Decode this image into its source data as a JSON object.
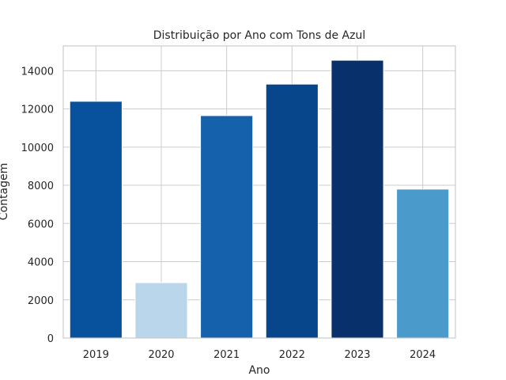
{
  "chart_data": {
    "type": "bar",
    "title": "Distribuição por Ano com Tons de Azul",
    "xlabel": "Ano",
    "ylabel": "Contagem",
    "categories": [
      "2019",
      "2020",
      "2021",
      "2022",
      "2023",
      "2024"
    ],
    "values": [
      12400,
      2900,
      11650,
      13300,
      14550,
      7800
    ],
    "colors": [
      "#08519c",
      "#b9d6ea",
      "#1561ab",
      "#08468b",
      "#08306b",
      "#4a9acc"
    ],
    "ylim": [
      0,
      15300
    ],
    "yticks": [
      0,
      2000,
      4000,
      6000,
      8000,
      10000,
      12000,
      14000
    ],
    "ytick_labels": [
      "0",
      "2000",
      "4000",
      "6000",
      "8000",
      "10000",
      "12000",
      "14000"
    ],
    "grid": true,
    "legend": null
  }
}
